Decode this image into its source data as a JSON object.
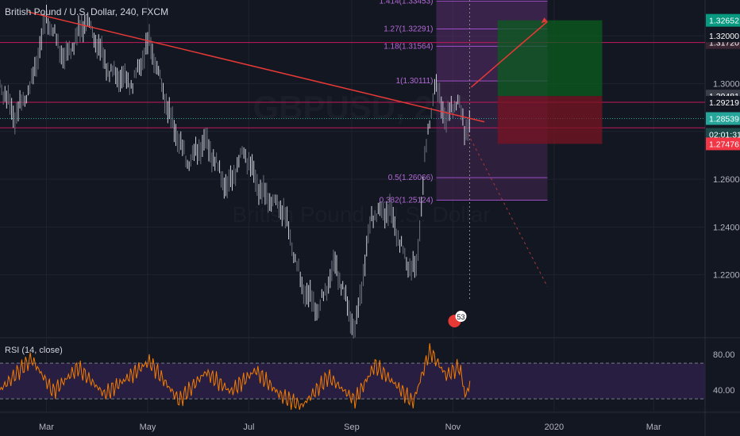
{
  "header": {
    "title": "British Pound / U.S. Dollar, 240, FXCM"
  },
  "chart_data": [
    {
      "type": "candlestick",
      "title": "British Pound / U.S. Dollar, 240, FXCM",
      "x_ticks": [
        "Mar",
        "May",
        "Jul",
        "Sep",
        "Nov",
        "2020",
        "Mar"
      ],
      "y_ticks": [
        "1.22000",
        "1.24000",
        "1.26000",
        "1.28000",
        "1.30000",
        "1.32000"
      ],
      "ylim": [
        1.195,
        1.335
      ],
      "price_path": [
        [
          "2019-02-01",
          1.3
        ],
        [
          "2019-02-10",
          1.286
        ],
        [
          "2019-02-20",
          1.3
        ],
        [
          "2019-03-01",
          1.328
        ],
        [
          "2019-03-12",
          1.31
        ],
        [
          "2019-03-25",
          1.327
        ],
        [
          "2019-04-08",
          1.305
        ],
        [
          "2019-04-22",
          1.3
        ],
        [
          "2019-05-02",
          1.318
        ],
        [
          "2019-05-15",
          1.285
        ],
        [
          "2019-05-25",
          1.267
        ],
        [
          "2019-06-05",
          1.276
        ],
        [
          "2019-06-18",
          1.256
        ],
        [
          "2019-06-28",
          1.272
        ],
        [
          "2019-07-08",
          1.255
        ],
        [
          "2019-07-22",
          1.247
        ],
        [
          "2019-08-02",
          1.215
        ],
        [
          "2019-08-12",
          1.205
        ],
        [
          "2019-08-22",
          1.225
        ],
        [
          "2019-09-03",
          1.196
        ],
        [
          "2019-09-13",
          1.245
        ],
        [
          "2019-09-24",
          1.247
        ],
        [
          "2019-10-04",
          1.225
        ],
        [
          "2019-10-10",
          1.222
        ],
        [
          "2019-10-15",
          1.268
        ],
        [
          "2019-10-21",
          1.3
        ],
        [
          "2019-10-28",
          1.285
        ],
        [
          "2019-11-04",
          1.294
        ],
        [
          "2019-11-08",
          1.28
        ],
        [
          "2019-11-12",
          1.286
        ]
      ],
      "price_tags": [
        {
          "value": "1.32652",
          "color": "#089981"
        },
        {
          "value": "1.31720",
          "color": "#3a2533"
        },
        {
          "value": "1.29481",
          "color": "#3a3e48"
        },
        {
          "value": "1.28539",
          "color": "#26a69a"
        },
        {
          "value": "02:01:31",
          "color": "#1c4a4a"
        },
        {
          "value": "1.27476",
          "color": "#f23645"
        },
        {
          "value": "1.32000",
          "color": "#131722"
        },
        {
          "value": "1.29219",
          "color": "#131722"
        }
      ],
      "fib_levels": [
        {
          "label": "1.414(1.33453)",
          "value": 1.33453
        },
        {
          "label": "1.27(1.32291)",
          "value": 1.32291
        },
        {
          "label": "1.18(1.31564)",
          "value": 1.31564
        },
        {
          "label": "1(1.30111)",
          "value": 1.30111
        },
        {
          "label": "0.5(1.26066)",
          "value": 1.26066
        },
        {
          "label": "0.382(1.25124)",
          "value": 1.25124
        }
      ],
      "trendline": {
        "from": [
          "2019-02-18",
          1.33
        ],
        "to": [
          "2019-11-20",
          1.284
        ]
      },
      "long_position": {
        "entry": 1.2948,
        "target": 1.3265,
        "stop": 1.2748
      },
      "event_badge": "53",
      "watermark": [
        "GBPUSD, 240",
        "British Pound / U.S. Dollar"
      ]
    },
    {
      "type": "line",
      "title": "RSI (14, close)",
      "y_ticks": [
        "40.00",
        "80.00"
      ],
      "ylim": [
        15,
        95
      ],
      "band": [
        30,
        70
      ],
      "rsi_path": [
        [
          "2019-02-01",
          40
        ],
        [
          "2019-02-20",
          75
        ],
        [
          "2019-03-05",
          38
        ],
        [
          "2019-03-20",
          65
        ],
        [
          "2019-04-05",
          35
        ],
        [
          "2019-04-20",
          55
        ],
        [
          "2019-05-02",
          72
        ],
        [
          "2019-05-20",
          28
        ],
        [
          "2019-06-05",
          60
        ],
        [
          "2019-06-20",
          38
        ],
        [
          "2019-07-05",
          62
        ],
        [
          "2019-07-20",
          34
        ],
        [
          "2019-08-02",
          22
        ],
        [
          "2019-08-18",
          55
        ],
        [
          "2019-09-03",
          28
        ],
        [
          "2019-09-15",
          68
        ],
        [
          "2019-09-28",
          45
        ],
        [
          "2019-10-08",
          26
        ],
        [
          "2019-10-18",
          84
        ],
        [
          "2019-10-28",
          56
        ],
        [
          "2019-11-05",
          66
        ],
        [
          "2019-11-09",
          30
        ],
        [
          "2019-11-12",
          60
        ]
      ]
    }
  ]
}
